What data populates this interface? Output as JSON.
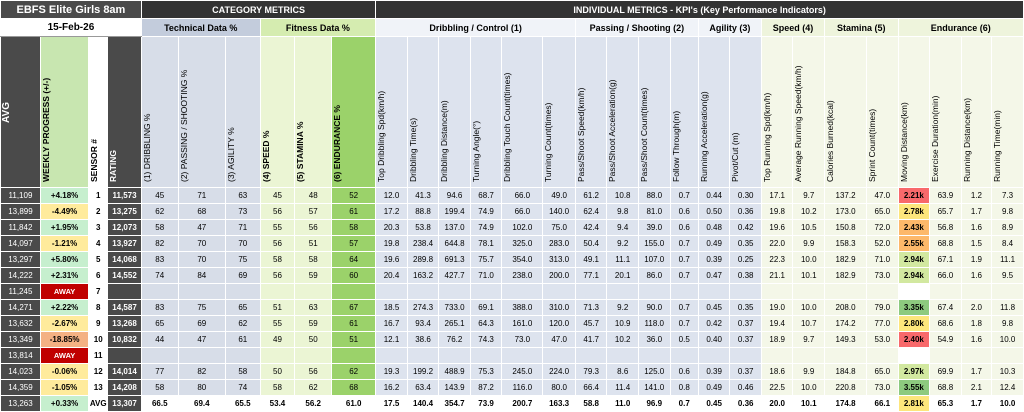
{
  "club_name": "EBFS Elite Girls 8am",
  "date": "15-Feb-26",
  "category_metrics": "CATEGORY  METRICS",
  "individual_metrics": "INDIVIDUAL METRICS - KPI's (Key Performance Indicators)",
  "groups": {
    "technical": "Technical Data %",
    "fitness": "Fitness Data %",
    "dribbling": "Dribbling / Control (1)",
    "passing": "Passing / Shooting (2)",
    "agility": "Agility (3)",
    "speed": "Speed (4)",
    "stamina": "Stamina (5)",
    "endurance": "Endurance (6)"
  },
  "col_headers": {
    "avg": "AVG",
    "progress": "WEEKLY PROGRESS (+/-)",
    "sensor": "SENSOR #",
    "rating": "RATING",
    "c1": "(1) DRIBBLING %",
    "c2": "(2) PASSING / SHOOTING %",
    "c3": "(3) AGILITY %",
    "c4": "(4) SPEED %",
    "c5": "(5) STAMINA %",
    "c6": "(6) ENDURANCE %",
    "k1": "Top Dribbling Spd(km/h)",
    "k2": "Dribbling Time(s)",
    "k3": "Dribbling Distance(m)",
    "k4": "Turning Angle(°)",
    "k5": "Dribbling Touch Count(times)",
    "k6": "Turning Count(times)",
    "k7": "Pass/Shoot Speed(km/h)",
    "k8": "Pass/Shoot Acceleration(g)",
    "k9": "Pass/Shoot Count(times)",
    "k10": "Follow Through(m)",
    "k11": "Running Acceleration(g)",
    "k12": "Pivot/Cut (m)",
    "k13": "Top Running Spd(km/h)",
    "k14": "Average Running Speed(km/h)",
    "k15": "Calories Burned(kcal)",
    "k16": "Sprint Count(times)",
    "k17": "Moving Distance(km)",
    "k18": "Exercise Duration(min)",
    "k19": "Running Distance(km)",
    "k20": "Running Time(min)"
  },
  "rows": [
    {
      "avg": "11,109",
      "prog": "+4.18%",
      "pc": "pos",
      "sensor": "1",
      "rating": "11,573",
      "c": [
        "45",
        "71",
        "63",
        "45",
        "48",
        "52"
      ],
      "k": [
        "12.0",
        "41.3",
        "94.6",
        "68.7",
        "66.0",
        "49.0",
        "61.2",
        "10.8",
        "88.0",
        "0.7",
        "0.44",
        "0.30",
        "17.1",
        "9.7",
        "137.2",
        "47.0",
        "2.21k",
        "63.9",
        "1.2",
        "7.3"
      ],
      "mc": "mdred"
    },
    {
      "avg": "13,899",
      "prog": "-4.49%",
      "pc": "neg",
      "sensor": "2",
      "rating": "13,275",
      "c": [
        "62",
        "68",
        "73",
        "56",
        "57",
        "61"
      ],
      "k": [
        "17.2",
        "88.8",
        "199.4",
        "74.9",
        "66.0",
        "140.0",
        "62.4",
        "9.8",
        "81.0",
        "0.6",
        "0.50",
        "0.36",
        "19.8",
        "10.2",
        "173.0",
        "65.0",
        "2.78k",
        "65.7",
        "1.7",
        "9.8"
      ],
      "mc": "mdyel"
    },
    {
      "avg": "11,842",
      "prog": "+1.95%",
      "pc": "pos",
      "sensor": "3",
      "rating": "12,073",
      "c": [
        "58",
        "47",
        "71",
        "55",
        "56",
        "58"
      ],
      "k": [
        "20.3",
        "53.8",
        "137.0",
        "74.9",
        "102.0",
        "75.0",
        "42.4",
        "9.4",
        "39.0",
        "0.6",
        "0.48",
        "0.42",
        "19.6",
        "10.5",
        "150.8",
        "72.0",
        "2.43k",
        "56.8",
        "1.6",
        "8.9"
      ],
      "mc": "mdor"
    },
    {
      "avg": "14,097",
      "prog": "-1.21%",
      "pc": "neg",
      "sensor": "4",
      "rating": "13,927",
      "c": [
        "82",
        "70",
        "70",
        "56",
        "51",
        "57"
      ],
      "k": [
        "19.8",
        "238.4",
        "644.8",
        "78.1",
        "325.0",
        "283.0",
        "50.4",
        "9.2",
        "155.0",
        "0.7",
        "0.49",
        "0.35",
        "22.0",
        "9.9",
        "158.3",
        "52.0",
        "2.55k",
        "68.8",
        "1.5",
        "8.4"
      ],
      "mc": "mdor"
    },
    {
      "avg": "13,297",
      "prog": "+5.80%",
      "pc": "pos",
      "sensor": "5",
      "rating": "14,068",
      "c": [
        "83",
        "70",
        "75",
        "58",
        "58",
        "64"
      ],
      "k": [
        "19.6",
        "289.8",
        "691.3",
        "75.7",
        "354.0",
        "313.0",
        "49.1",
        "11.1",
        "107.0",
        "0.7",
        "0.39",
        "0.25",
        "22.3",
        "10.0",
        "182.9",
        "71.0",
        "2.94k",
        "67.1",
        "1.9",
        "11.1"
      ],
      "mc": "mdlt"
    },
    {
      "avg": "14,222",
      "prog": "+2.31%",
      "pc": "pos",
      "sensor": "6",
      "rating": "14,552",
      "c": [
        "74",
        "84",
        "69",
        "56",
        "59",
        "60"
      ],
      "k": [
        "20.4",
        "163.2",
        "427.7",
        "71.0",
        "238.0",
        "200.0",
        "77.1",
        "20.1",
        "86.0",
        "0.7",
        "0.47",
        "0.38",
        "21.1",
        "10.1",
        "182.9",
        "73.0",
        "2.94k",
        "66.0",
        "1.6",
        "9.5"
      ],
      "mc": "mdlt"
    },
    {
      "avg": "11,245",
      "prog": "AWAY",
      "pc": "redtag",
      "sensor": "7",
      "rating": "",
      "c": [
        "",
        "",
        "",
        "",
        "",
        ""
      ],
      "k": [
        "",
        "",
        "",
        "",
        "",
        "",
        "",
        "",
        "",
        "",
        "",
        "",
        "",
        "",
        "",
        "",
        "",
        "",
        "",
        ""
      ],
      "mc": "white"
    },
    {
      "avg": "14,271",
      "prog": "+2.22%",
      "pc": "pos",
      "sensor": "8",
      "rating": "14,587",
      "c": [
        "83",
        "75",
        "65",
        "51",
        "63",
        "67"
      ],
      "k": [
        "18.5",
        "274.3",
        "733.0",
        "69.1",
        "388.0",
        "310.0",
        "71.3",
        "9.2",
        "90.0",
        "0.7",
        "0.45",
        "0.35",
        "19.0",
        "10.0",
        "208.0",
        "79.0",
        "3.35k",
        "67.4",
        "2.0",
        "11.8"
      ],
      "mc": "mdgr"
    },
    {
      "avg": "13,632",
      "prog": "-2.67%",
      "pc": "neg",
      "sensor": "9",
      "rating": "13,268",
      "c": [
        "65",
        "69",
        "62",
        "55",
        "59",
        "61"
      ],
      "k": [
        "16.7",
        "93.4",
        "265.1",
        "64.3",
        "161.0",
        "120.0",
        "45.7",
        "10.9",
        "118.0",
        "0.7",
        "0.42",
        "0.37",
        "19.4",
        "10.7",
        "174.2",
        "77.0",
        "2.80k",
        "68.6",
        "1.8",
        "9.8"
      ],
      "mc": "mdyel"
    },
    {
      "avg": "13,349",
      "prog": "-18.85%",
      "pc": "neg2",
      "sensor": "10",
      "rating": "10,832",
      "c": [
        "44",
        "47",
        "61",
        "49",
        "50",
        "51"
      ],
      "k": [
        "12.1",
        "38.6",
        "76.2",
        "74.3",
        "73.0",
        "47.0",
        "41.7",
        "10.2",
        "36.0",
        "0.5",
        "0.40",
        "0.37",
        "18.9",
        "9.7",
        "149.3",
        "53.0",
        "2.40k",
        "54.9",
        "1.6",
        "10.0"
      ],
      "mc": "mdred"
    },
    {
      "avg": "13,814",
      "prog": "AWAY",
      "pc": "redtag",
      "sensor": "11",
      "rating": "",
      "c": [
        "",
        "",
        "",
        "",
        "",
        ""
      ],
      "k": [
        "",
        "",
        "",
        "",
        "",
        "",
        "",
        "",
        "",
        "",
        "",
        "",
        "",
        "",
        "",
        "",
        "",
        "",
        "",
        ""
      ],
      "mc": "white"
    },
    {
      "avg": "14,023",
      "prog": "-0.06%",
      "pc": "neg",
      "sensor": "12",
      "rating": "14,014",
      "c": [
        "77",
        "82",
        "58",
        "50",
        "56",
        "62"
      ],
      "k": [
        "19.3",
        "199.2",
        "488.9",
        "75.3",
        "245.0",
        "224.0",
        "79.3",
        "8.6",
        "125.0",
        "0.6",
        "0.39",
        "0.37",
        "18.6",
        "9.9",
        "184.8",
        "65.0",
        "2.97k",
        "69.9",
        "1.7",
        "10.3"
      ],
      "mc": "mdlt"
    },
    {
      "avg": "14,359",
      "prog": "-1.05%",
      "pc": "neg",
      "sensor": "13",
      "rating": "14,208",
      "c": [
        "58",
        "80",
        "74",
        "58",
        "62",
        "68"
      ],
      "k": [
        "16.2",
        "63.4",
        "143.9",
        "87.2",
        "116.0",
        "80.0",
        "66.4",
        "11.4",
        "141.0",
        "0.8",
        "0.49",
        "0.46",
        "22.5",
        "10.0",
        "220.8",
        "73.0",
        "3.55k",
        "68.8",
        "2.1",
        "12.4"
      ],
      "mc": "mdgr"
    }
  ],
  "totals": {
    "avg": "13,263",
    "prog": "+0.33%",
    "sensor": "AVG",
    "rating": "13,307",
    "c": [
      "66.5",
      "69.4",
      "65.5",
      "53.4",
      "56.2",
      "61.0"
    ],
    "k": [
      "17.5",
      "140.4",
      "354.7",
      "73.9",
      "200.7",
      "163.3",
      "58.8",
      "11.0",
      "96.9",
      "0.7",
      "0.45",
      "0.36",
      "20.0",
      "10.1",
      "174.8",
      "66.1",
      "2.81k",
      "65.3",
      "1.7",
      "10.0"
    ]
  }
}
